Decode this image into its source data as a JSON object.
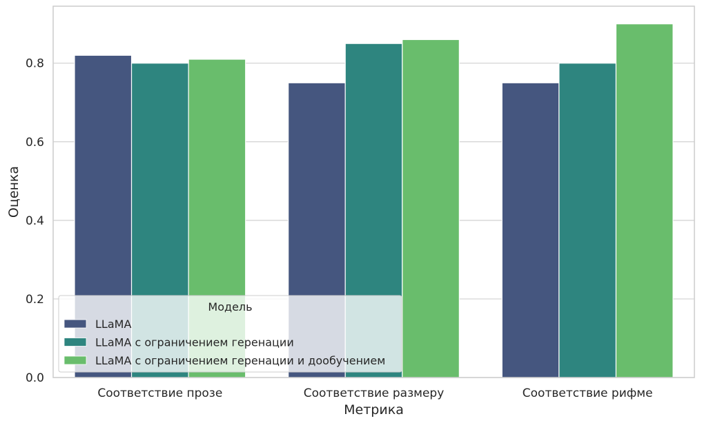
{
  "chart_data": {
    "type": "bar",
    "categories": [
      "Соответствие прозе",
      "Соответствие размеру",
      "Соответствие рифме"
    ],
    "series": [
      {
        "name": "LLaMA",
        "color": "#45567f",
        "values": [
          0.82,
          0.75,
          0.75
        ]
      },
      {
        "name": "LLaMA с ограничением геренации",
        "color": "#2e857f",
        "values": [
          0.8,
          0.85,
          0.8
        ]
      },
      {
        "name": "LLaMA с ограничением геренации и дообучением",
        "color": "#69bd6c",
        "values": [
          0.81,
          0.86,
          0.9
        ]
      }
    ],
    "title": "",
    "xlabel": "Метрика",
    "ylabel": "Оценка",
    "ylim": [
      0,
      0.945
    ],
    "yticks": [
      0.0,
      0.2,
      0.4,
      0.6,
      0.8
    ],
    "ytick_labels": [
      "0.0",
      "0.2",
      "0.4",
      "0.6",
      "0.8"
    ],
    "grid": "horizontal",
    "legend": {
      "title": "Модель",
      "placement": "lower-left"
    }
  }
}
